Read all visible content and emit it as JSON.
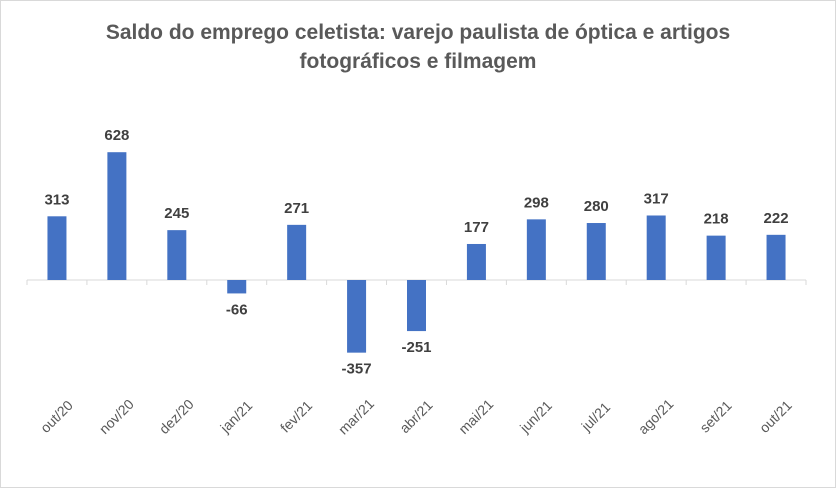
{
  "chart_data": {
    "type": "bar",
    "title_lines": [
      "Saldo do emprego celetista: varejo paulista de óptica e artigos",
      "fotográficos e filmagem"
    ],
    "categories": [
      "out/20",
      "nov/20",
      "dez/20",
      "jan/21",
      "fev/21",
      "mar/21",
      "abr/21",
      "mai/21",
      "jun/21",
      "jul/21",
      "ago/21",
      "set/21",
      "out/21"
    ],
    "values": [
      313,
      628,
      245,
      -66,
      271,
      -357,
      -251,
      177,
      298,
      280,
      317,
      218,
      222
    ],
    "xlabel": "",
    "ylabel": "",
    "grid": false,
    "legend": "none",
    "bar_color": "#4472c4",
    "axis_color": "#d9d9d9"
  }
}
